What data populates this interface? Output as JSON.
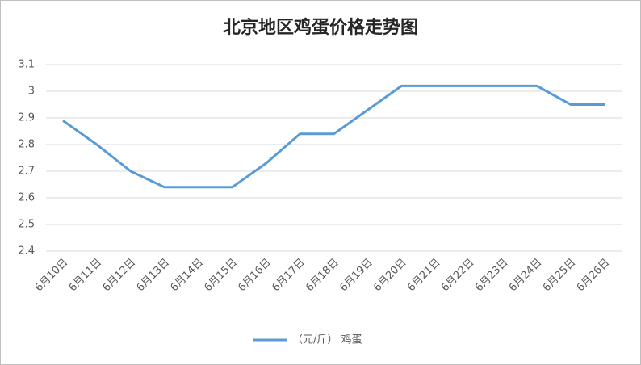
{
  "chart_data": {
    "type": "line",
    "title": "北京地区鸡蛋价格走势图",
    "categories": [
      "6月10日",
      "6月11日",
      "6月12日",
      "6月13日",
      "6月14日",
      "6月15日",
      "6月16日",
      "6月17日",
      "6月18日",
      "6月19日",
      "6月20日",
      "6月21日",
      "6月22日",
      "6月23日",
      "6月24日",
      "6月25日",
      "6月26日"
    ],
    "series": [
      {
        "name": "（元/斤） 鸡蛋",
        "color": "#5b9bd5",
        "values": [
          2.89,
          2.8,
          2.7,
          2.64,
          2.64,
          2.64,
          2.73,
          2.84,
          2.84,
          2.93,
          3.02,
          3.02,
          3.02,
          3.02,
          3.02,
          2.95,
          2.95
        ]
      }
    ],
    "ylim": [
      2.4,
      3.1
    ],
    "yticks": [
      2.4,
      2.5,
      2.6,
      2.7,
      2.8,
      2.9,
      3,
      3.1
    ],
    "grid": true,
    "legend": "bottom"
  }
}
